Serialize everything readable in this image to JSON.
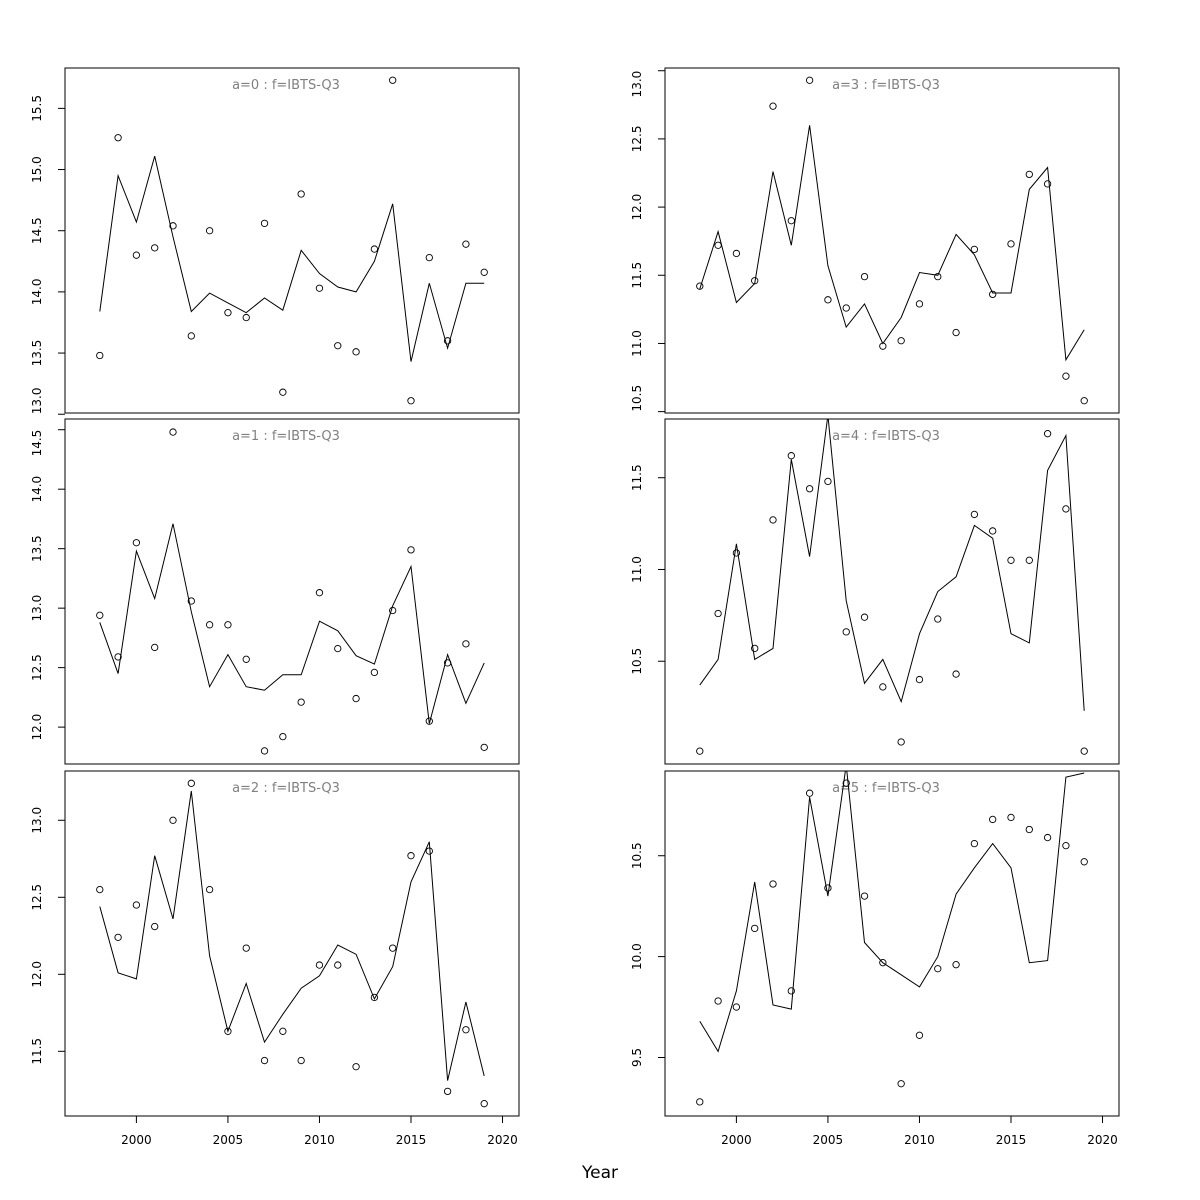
{
  "chart_data": {
    "type": "scatter+line",
    "xlabel": "Year",
    "x": [
      1998,
      1999,
      2000,
      2001,
      2002,
      2003,
      2004,
      2005,
      2006,
      2007,
      2008,
      2009,
      2010,
      2011,
      2012,
      2013,
      2014,
      2015,
      2016,
      2017,
      2018,
      2019
    ],
    "xlim": [
      1996.1,
      2020.9
    ],
    "xticks": [
      2000,
      2005,
      2010,
      2015,
      2020
    ],
    "panels": [
      {
        "title": "a=0  :  f=IBTS-Q3",
        "ylim": [
          13.01,
          15.83
        ],
        "yticks": [
          13.0,
          13.5,
          14.0,
          14.5,
          15.0,
          15.5
        ],
        "observed": [
          13.48,
          15.26,
          14.3,
          14.36,
          14.54,
          13.64,
          14.5,
          13.83,
          13.79,
          14.56,
          13.18,
          14.8,
          14.03,
          13.56,
          13.51,
          14.35,
          15.73,
          13.11,
          14.28,
          13.6,
          14.39,
          14.16
        ],
        "fitted": [
          13.84,
          14.95,
          14.57,
          15.11,
          14.45,
          13.84,
          13.99,
          13.91,
          13.83,
          13.95,
          13.85,
          14.34,
          14.15,
          14.04,
          14.0,
          14.25,
          14.72,
          13.43,
          14.07,
          13.54,
          14.07,
          14.07
        ]
      },
      {
        "title": "a=1  :  f=IBTS-Q3",
        "ylim": [
          11.69,
          14.59
        ],
        "yticks": [
          12.0,
          12.5,
          13.0,
          13.5,
          14.0,
          14.5
        ],
        "observed": [
          12.94,
          12.59,
          13.55,
          12.67,
          14.48,
          13.06,
          12.86,
          12.86,
          12.57,
          11.8,
          11.92,
          12.21,
          13.13,
          12.66,
          12.24,
          12.46,
          12.98,
          13.49,
          12.05,
          12.54,
          12.7,
          11.83
        ],
        "fitted": [
          12.88,
          12.45,
          13.48,
          13.08,
          13.71,
          12.97,
          12.34,
          12.61,
          12.34,
          12.31,
          12.44,
          12.44,
          12.89,
          12.81,
          12.6,
          12.53,
          13.02,
          13.35,
          12.03,
          12.61,
          12.2,
          12.54
        ]
      },
      {
        "title": "a=2  :  f=IBTS-Q3",
        "ylim": [
          11.08,
          13.32
        ],
        "yticks": [
          11.5,
          12.0,
          12.5,
          13.0
        ],
        "observed": [
          12.55,
          12.24,
          12.45,
          12.31,
          13.0,
          13.24,
          12.55,
          11.63,
          12.17,
          11.44,
          11.63,
          11.44,
          12.06,
          12.06,
          11.4,
          11.85,
          12.17,
          12.77,
          12.8,
          11.24,
          11.64,
          11.16
        ],
        "fitted": [
          12.44,
          12.01,
          11.97,
          12.77,
          12.36,
          13.19,
          12.12,
          11.63,
          11.94,
          11.56,
          11.74,
          11.91,
          11.99,
          12.19,
          12.13,
          11.84,
          12.05,
          12.6,
          12.86,
          11.31,
          11.82,
          11.34
        ]
      },
      {
        "title": "a=3  :  f=IBTS-Q3",
        "ylim": [
          10.49,
          13.02
        ],
        "yticks": [
          10.5,
          11.0,
          11.5,
          12.0,
          12.5,
          13.0
        ],
        "observed": [
          11.42,
          11.72,
          11.66,
          11.46,
          12.74,
          11.9,
          12.93,
          11.32,
          11.26,
          11.49,
          10.98,
          11.02,
          11.29,
          11.49,
          11.08,
          11.69,
          11.36,
          11.73,
          12.24,
          12.17,
          10.76,
          10.58
        ],
        "fitted": [
          11.4,
          11.82,
          11.3,
          11.44,
          12.26,
          11.72,
          12.6,
          11.57,
          11.12,
          11.29,
          11.0,
          11.19,
          11.52,
          11.5,
          11.8,
          11.65,
          11.37,
          11.37,
          12.13,
          12.29,
          10.88,
          11.1
        ]
      },
      {
        "title": "a=4  :  f=IBTS-Q3",
        "ylim": [
          9.94,
          11.82
        ],
        "yticks": [
          10.5,
          11.0,
          11.5
        ],
        "observed": [
          10.01,
          10.76,
          11.09,
          10.57,
          11.27,
          11.62,
          11.44,
          11.48,
          10.66,
          10.74,
          10.36,
          10.06,
          10.4,
          10.73,
          10.43,
          11.3,
          11.21,
          11.05,
          11.05,
          11.74,
          11.33,
          10.01
        ],
        "fitted": [
          10.37,
          10.51,
          11.14,
          10.51,
          10.57,
          11.6,
          11.07,
          11.84,
          10.83,
          10.38,
          10.51,
          10.28,
          10.65,
          10.88,
          10.96,
          11.24,
          11.17,
          10.65,
          10.6,
          11.54,
          11.73,
          10.23
        ]
      },
      {
        "title": "a=5  :  f=IBTS-Q3",
        "ylim": [
          9.21,
          10.92
        ],
        "yticks": [
          9.5,
          10.0,
          10.5
        ],
        "observed": [
          9.28,
          9.78,
          9.75,
          10.14,
          10.36,
          9.83,
          10.81,
          10.34,
          10.86,
          10.3,
          9.97,
          9.37,
          9.61,
          9.94,
          9.96,
          10.56,
          10.68,
          10.69,
          10.63,
          10.59,
          10.55,
          10.47
        ],
        "fitted": [
          9.68,
          9.53,
          9.83,
          10.37,
          9.76,
          9.74,
          10.79,
          10.3,
          10.95,
          10.07,
          9.97,
          9.91,
          9.85,
          10.0,
          10.31,
          10.44,
          10.56,
          10.44,
          9.97,
          9.98,
          10.89,
          10.91
        ]
      }
    ]
  }
}
